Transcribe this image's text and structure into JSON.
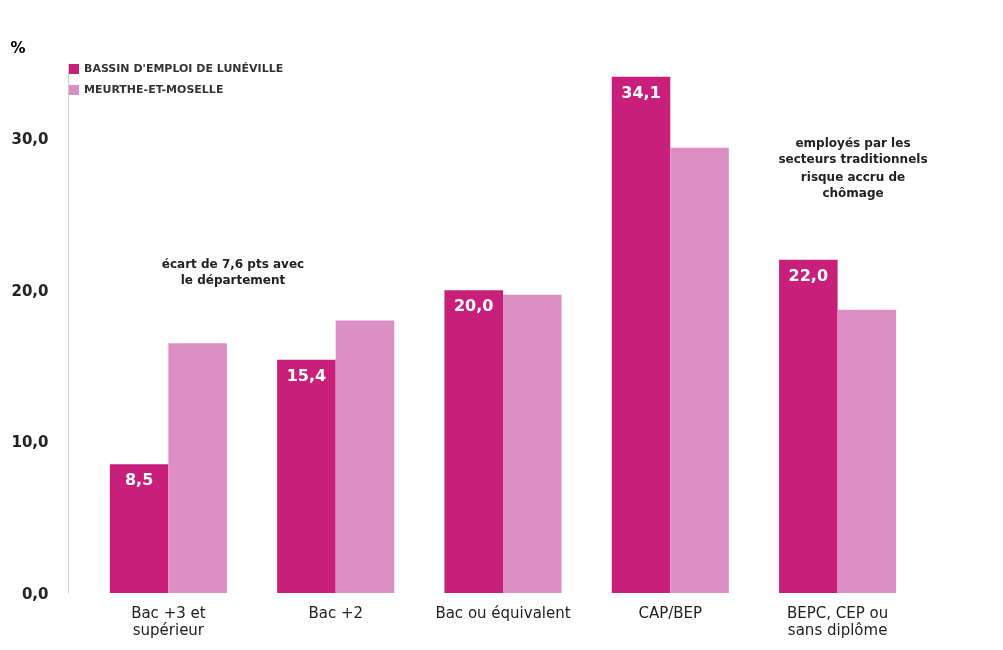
{
  "chart_data": {
    "type": "bar",
    "ylabel": "%",
    "categories": [
      "Bac +3 et\nsupérieur",
      "Bac +2",
      "Bac ou équivalent",
      "CAP/BEP",
      "BEPC, CEP ou\nsans diplôme"
    ],
    "series": [
      {
        "name": "BASSIN D'EMPLOI DE LUNÉVILLE",
        "color": "#c8207a",
        "values": [
          8.5,
          15.4,
          20.0,
          34.1,
          22.0
        ],
        "value_labels": [
          "8,5",
          "15,4",
          "20,0",
          "34,1",
          "22,0"
        ]
      },
      {
        "name": "MEURTHE-ET-MOSELLE",
        "color": "#dc8fc4",
        "values": [
          16.5,
          18.0,
          19.7,
          29.4,
          18.7
        ]
      }
    ],
    "ylim": [
      0,
      35
    ],
    "yticks": [
      {
        "value": 0,
        "label": "0,0"
      },
      {
        "value": 10,
        "label": "10,0"
      },
      {
        "value": 20,
        "label": "20,0"
      },
      {
        "value": 30,
        "label": "30,0"
      }
    ],
    "grid": false,
    "legend": "top left",
    "annotations": [
      "écart de 7,6 pts avec le département",
      "employés par les secteurs traditionnels",
      "risque accru de chômage"
    ]
  }
}
